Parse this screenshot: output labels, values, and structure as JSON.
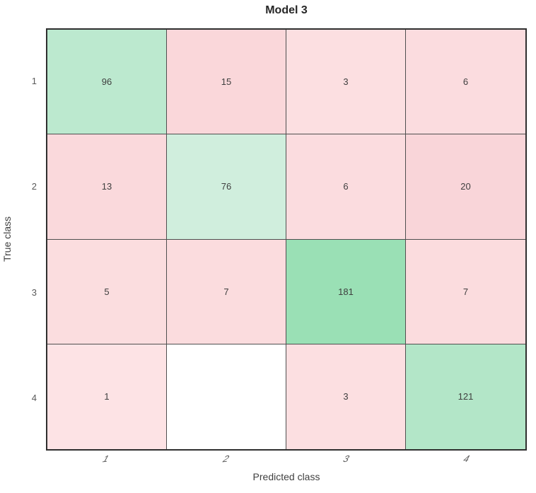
{
  "chart_data": {
    "type": "heatmap",
    "subtype": "confusion-matrix",
    "title": "Model 3",
    "xlabel": "Predicted class",
    "ylabel": "True class",
    "x_tick_labels": [
      "1",
      "2",
      "3",
      "4"
    ],
    "y_tick_labels": [
      "1",
      "2",
      "3",
      "4"
    ],
    "matrix": [
      [
        96,
        15,
        3,
        6
      ],
      [
        13,
        76,
        6,
        20
      ],
      [
        5,
        7,
        181,
        7
      ],
      [
        1,
        null,
        3,
        121
      ]
    ],
    "cell_colors": [
      [
        "#bce9cf",
        "#fad7da",
        "#fcdfe1",
        "#fbdcdf"
      ],
      [
        "#fad9dc",
        "#d0eedd",
        "#fbdcdf",
        "#f9d5d9"
      ],
      [
        "#fbdddf",
        "#fbdcde",
        "#9ae0b5",
        "#fbdcde"
      ],
      [
        "#fde3e5",
        "#ffffff",
        "#fcdfe1",
        "#b3e6c8"
      ]
    ],
    "diagonal_accent_color": "#9ae0b5",
    "off_diagonal_accent_color": "#f9d5d9",
    "empty_cell_color": "#ffffff",
    "grid_line_color": "#4f4f4f",
    "axis_box_color": "#2f2f2f",
    "legend": "none",
    "grid": "cell-borders"
  }
}
